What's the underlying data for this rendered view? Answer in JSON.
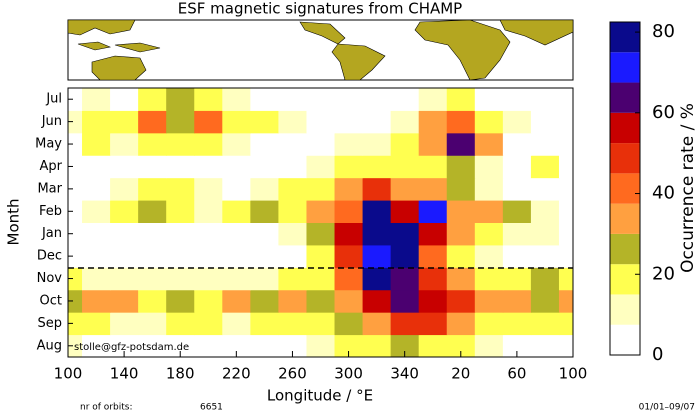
{
  "chart_data": {
    "type": "heatmap",
    "title": "ESF magnetic signatures from CHAMP",
    "x_label": "Longitude / °E",
    "y_label": "Month",
    "colorbar_label": "Occurrence rate / %",
    "x": [
      100,
      120,
      140,
      160,
      180,
      200,
      220,
      240,
      260,
      280,
      300,
      320,
      340,
      360,
      380,
      400,
      420,
      440,
      460
    ],
    "xlim": [
      100,
      460
    ],
    "xticks": [
      100,
      140,
      180,
      220,
      260,
      300,
      340,
      {
        "value": 380,
        "label": "20"
      },
      {
        "value": 420,
        "label": "60"
      },
      {
        "value": 460,
        "label": "100"
      }
    ],
    "categories": [
      "Aug",
      "Sep",
      "Oct",
      "Nov",
      "Dec",
      "Jan",
      "Feb",
      "Mar",
      "Apr",
      "May",
      "Jun",
      "Jul"
    ],
    "z": [
      [
        10,
        5,
        5,
        5,
        5,
        5,
        5,
        5,
        5,
        10,
        15,
        20,
        25,
        20,
        20,
        10,
        5,
        5,
        5
      ],
      [
        15,
        15,
        12,
        10,
        15,
        15,
        12,
        15,
        15,
        20,
        25,
        35,
        45,
        50,
        35,
        20,
        15,
        15,
        15
      ],
      [
        25,
        35,
        30,
        20,
        25,
        20,
        35,
        25,
        30,
        25,
        35,
        55,
        65,
        55,
        45,
        30,
        35,
        25,
        30
      ],
      [
        15,
        12,
        10,
        10,
        12,
        10,
        10,
        12,
        15,
        20,
        40,
        75,
        60,
        45,
        30,
        15,
        20,
        25,
        15
      ],
      [
        5,
        5,
        5,
        5,
        5,
        5,
        5,
        5,
        5,
        15,
        45,
        70,
        75,
        40,
        20,
        10,
        5,
        5,
        5
      ],
      [
        5,
        5,
        5,
        5,
        5,
        5,
        5,
        5,
        10,
        25,
        55,
        80,
        80,
        55,
        30,
        20,
        10,
        10,
        5
      ],
      [
        5,
        10,
        20,
        25,
        15,
        10,
        15,
        25,
        20,
        30,
        40,
        75,
        55,
        70,
        30,
        30,
        25,
        10,
        5
      ],
      [
        5,
        5,
        10,
        15,
        20,
        10,
        5,
        10,
        15,
        20,
        35,
        45,
        30,
        35,
        25,
        10,
        5,
        5,
        5
      ],
      [
        5,
        5,
        5,
        5,
        5,
        5,
        5,
        5,
        5,
        10,
        20,
        20,
        15,
        15,
        25,
        10,
        5,
        15,
        5
      ],
      [
        5,
        15,
        10,
        20,
        20,
        15,
        10,
        5,
        5,
        5,
        10,
        10,
        20,
        35,
        60,
        30,
        5,
        5,
        5
      ],
      [
        10,
        20,
        15,
        40,
        25,
        40,
        20,
        15,
        10,
        5,
        5,
        5,
        10,
        30,
        40,
        20,
        10,
        5,
        5
      ],
      [
        5,
        10,
        5,
        20,
        25,
        20,
        10,
        5,
        5,
        5,
        5,
        5,
        5,
        10,
        15,
        5,
        5,
        5,
        5
      ]
    ],
    "levels": [
      0,
      7.5,
      15,
      22.5,
      30,
      37.5,
      45,
      52.5,
      60,
      67.5,
      75,
      82.5
    ],
    "colors": [
      "#ffffff",
      "#ffffc0",
      "#ffff50",
      "#b4b428",
      "#ffa040",
      "#ff6a1f",
      "#e8300a",
      "#c80000",
      "#4b0070",
      "#1a1aff",
      "#0a0a8c"
    ],
    "clim": [
      0,
      82.5
    ],
    "cticks": [
      0,
      20,
      40,
      60,
      80
    ],
    "watermark": "stolle@gfz-potsdam.de",
    "orbits_label": "nr of orbits:",
    "orbits": "6651",
    "period": "01/01–09/07"
  }
}
